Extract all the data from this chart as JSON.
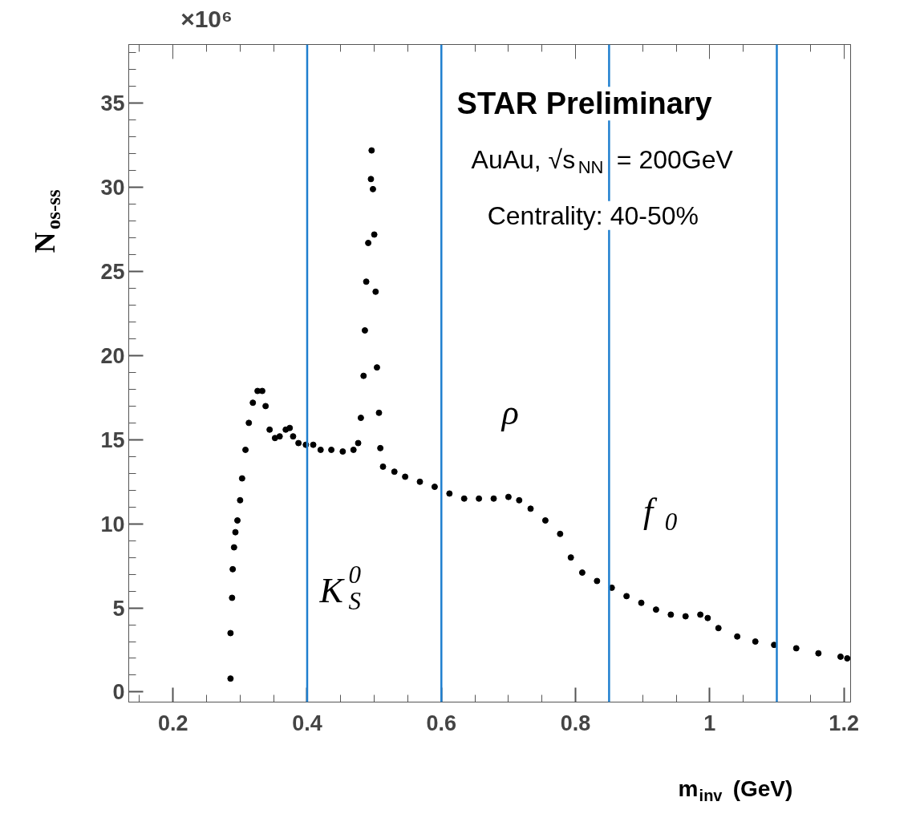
{
  "chart_data": {
    "type": "scatter",
    "xlabel": "m$_{inv}$ (GeV)",
    "ylabel": "N$_{os-ss}$",
    "annotations": [
      "×10⁶",
      "STAR Preliminary",
      "AuAu, √s$_{NN}$ = 200GeV",
      "Centrality: 40-50%",
      "K$_{S}$$^{0}$",
      "ρ",
      "f$_{0}$"
    ],
    "x": [
      0.2857,
      0.2857,
      0.288,
      0.289,
      0.291,
      0.293,
      0.296,
      0.3,
      0.303,
      0.308,
      0.313,
      0.319,
      0.326,
      0.333,
      0.338,
      0.344,
      0.352,
      0.359,
      0.368,
      0.374,
      0.379,
      0.387,
      0.398,
      0.409,
      0.42,
      0.436,
      0.453,
      0.469,
      0.476,
      0.48,
      0.484,
      0.486,
      0.488,
      0.491,
      0.495,
      0.496,
      0.498,
      0.5,
      0.502,
      0.504,
      0.507,
      0.509,
      0.513,
      0.53,
      0.546,
      0.568,
      0.59,
      0.612,
      0.634,
      0.656,
      0.678,
      0.7,
      0.716,
      0.733,
      0.755,
      0.777,
      0.793,
      0.81,
      0.832,
      0.854,
      0.876,
      0.898,
      0.92,
      0.942,
      0.964,
      0.986,
      0.997,
      1.013,
      1.041,
      1.068,
      1.096,
      1.129,
      1.162,
      1.195,
      1.205
    ],
    "values": [
      0.8,
      3.5,
      5.6,
      7.3,
      8.6,
      9.5,
      10.2,
      11.4,
      12.7,
      14.4,
      16.0,
      17.2,
      17.9,
      17.9,
      17.0,
      15.6,
      15.1,
      15.2,
      15.6,
      15.7,
      15.2,
      14.8,
      14.7,
      14.7,
      14.4,
      14.4,
      14.3,
      14.4,
      14.8,
      16.3,
      18.8,
      21.5,
      24.4,
      26.7,
      30.5,
      32.2,
      29.9,
      27.2,
      23.8,
      19.3,
      16.6,
      14.5,
      13.4,
      13.1,
      12.8,
      12.5,
      12.2,
      11.8,
      11.5,
      11.5,
      11.5,
      11.6,
      11.4,
      10.9,
      10.2,
      9.4,
      8.0,
      7.1,
      6.6,
      6.2,
      5.7,
      5.3,
      4.9,
      4.6,
      4.5,
      4.6,
      4.4,
      3.8,
      3.3,
      3.0,
      2.8,
      2.6,
      2.3,
      2.1,
      2.0
    ],
    "color": "#000000",
    "marker": "circle",
    "xlim": [
      0.134,
      1.21
    ],
    "xticks": [
      0.2,
      0.4,
      0.6,
      0.8,
      1,
      1.2
    ],
    "ylim": [
      -0.6,
      38.5
    ],
    "yticks": [
      0,
      5,
      10,
      15,
      20,
      25,
      30,
      35
    ],
    "ref_lines": [
      {
        "axis": "x",
        "value": 0.4,
        "color": "#1f7fcf"
      },
      {
        "axis": "x",
        "value": 0.6,
        "color": "#1f7fcf"
      },
      {
        "axis": "x",
        "value": 0.85,
        "color": "#1f7fcf"
      },
      {
        "axis": "x",
        "value": 1.1,
        "color": "#1f7fcf"
      }
    ],
    "grid": false
  }
}
